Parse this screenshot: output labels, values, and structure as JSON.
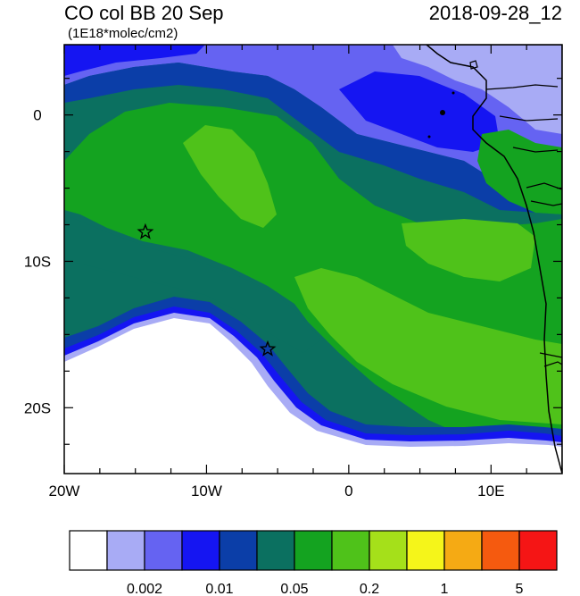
{
  "title_left": "CO col BB 20 Sep",
  "title_right": "2018-09-28_12",
  "units": "(1E18*molec/cm2)",
  "map": {
    "lon_range": [
      -20,
      15
    ],
    "lat_range": [
      -24.5,
      4.8
    ],
    "x_ticks": [
      {
        "lon": -20,
        "label": "20W"
      },
      {
        "lon": -10,
        "label": "10W"
      },
      {
        "lon": 0,
        "label": "0"
      },
      {
        "lon": 10,
        "label": "10E"
      }
    ],
    "y_ticks": [
      {
        "lat": 0,
        "label": "0"
      },
      {
        "lat": -10,
        "label": "10S"
      },
      {
        "lat": -20,
        "label": "20S"
      }
    ],
    "markers": [
      {
        "name": "star",
        "lon": -14.3,
        "lat": -8
      },
      {
        "name": "star",
        "lon": -5.7,
        "lat": -16
      }
    ]
  },
  "colorbar": {
    "colors": [
      "#ffffff",
      "#a8abf5",
      "#6563f2",
      "#1515f2",
      "#0b3ea8",
      "#0b7060",
      "#14a320",
      "#4fc21a",
      "#a5e01a",
      "#f5f51a",
      "#f5aa14",
      "#f55a0f",
      "#f51515"
    ],
    "labels": [
      {
        "after_box": 2,
        "text": "0.002"
      },
      {
        "after_box": 4,
        "text": "0.01"
      },
      {
        "after_box": 6,
        "text": "0.05"
      },
      {
        "after_box": 8,
        "text": "0.2"
      },
      {
        "after_box": 10,
        "text": "1"
      },
      {
        "after_box": 12,
        "text": "5"
      }
    ]
  }
}
